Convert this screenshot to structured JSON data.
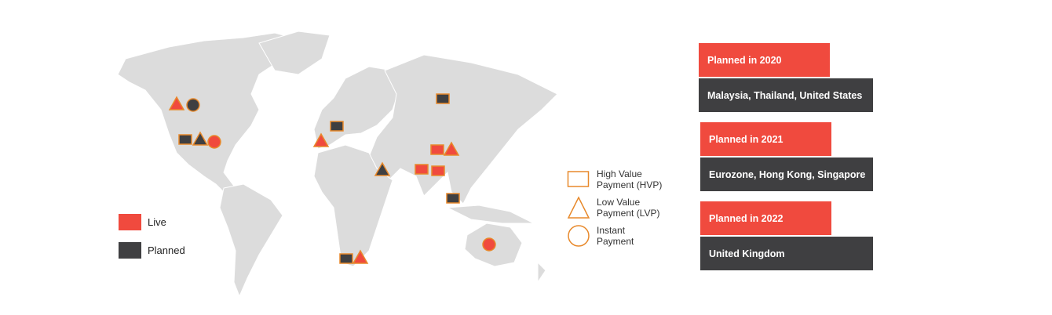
{
  "colors": {
    "live": "#f04a3e",
    "planned": "#3f3f41",
    "outline": "#e8892b",
    "land": "#dcdcdc"
  },
  "status_legend": [
    {
      "key": "live",
      "label": "Live"
    },
    {
      "key": "planned",
      "label": "Planned"
    }
  ],
  "type_legend": [
    {
      "shape": "square",
      "label_line1": "High Value",
      "label_line2": "Payment (HVP)"
    },
    {
      "shape": "triangle",
      "label_line1": "Low Value",
      "label_line2": "Payment (LVP)"
    },
    {
      "shape": "circle",
      "label_line1": "Instant",
      "label_line2": "Payment"
    }
  ],
  "timeline": [
    {
      "year_label": "Planned in 2020",
      "countries": "Malaysia, Thailand, United States"
    },
    {
      "year_label": "Planned in 2021",
      "countries": "Eurozone, Hong Kong, Singapore"
    },
    {
      "year_label": "Planned in 2022",
      "countries": "United Kingdom"
    }
  ],
  "markers": [
    {
      "region": "canada",
      "shape": "triangle",
      "status": "live"
    },
    {
      "region": "canada",
      "shape": "circle",
      "status": "planned"
    },
    {
      "region": "us",
      "shape": "square",
      "status": "planned"
    },
    {
      "region": "us",
      "shape": "triangle",
      "status": "planned"
    },
    {
      "region": "us",
      "shape": "circle",
      "status": "live"
    },
    {
      "region": "uk",
      "shape": "square",
      "status": "planned"
    },
    {
      "region": "europe",
      "shape": "triangle",
      "status": "live"
    },
    {
      "region": "russia",
      "shape": "square",
      "status": "planned"
    },
    {
      "region": "saudi",
      "shape": "triangle",
      "status": "planned"
    },
    {
      "region": "china",
      "shape": "square",
      "status": "live"
    },
    {
      "region": "china",
      "shape": "triangle",
      "status": "live"
    },
    {
      "region": "india",
      "shape": "square",
      "status": "live"
    },
    {
      "region": "india",
      "shape": "square",
      "status": "live"
    },
    {
      "region": "malaysia",
      "shape": "square",
      "status": "planned"
    },
    {
      "region": "southafrica",
      "shape": "square",
      "status": "planned"
    },
    {
      "region": "southafrica",
      "shape": "triangle",
      "status": "live"
    },
    {
      "region": "australia",
      "shape": "circle",
      "status": "live"
    }
  ]
}
